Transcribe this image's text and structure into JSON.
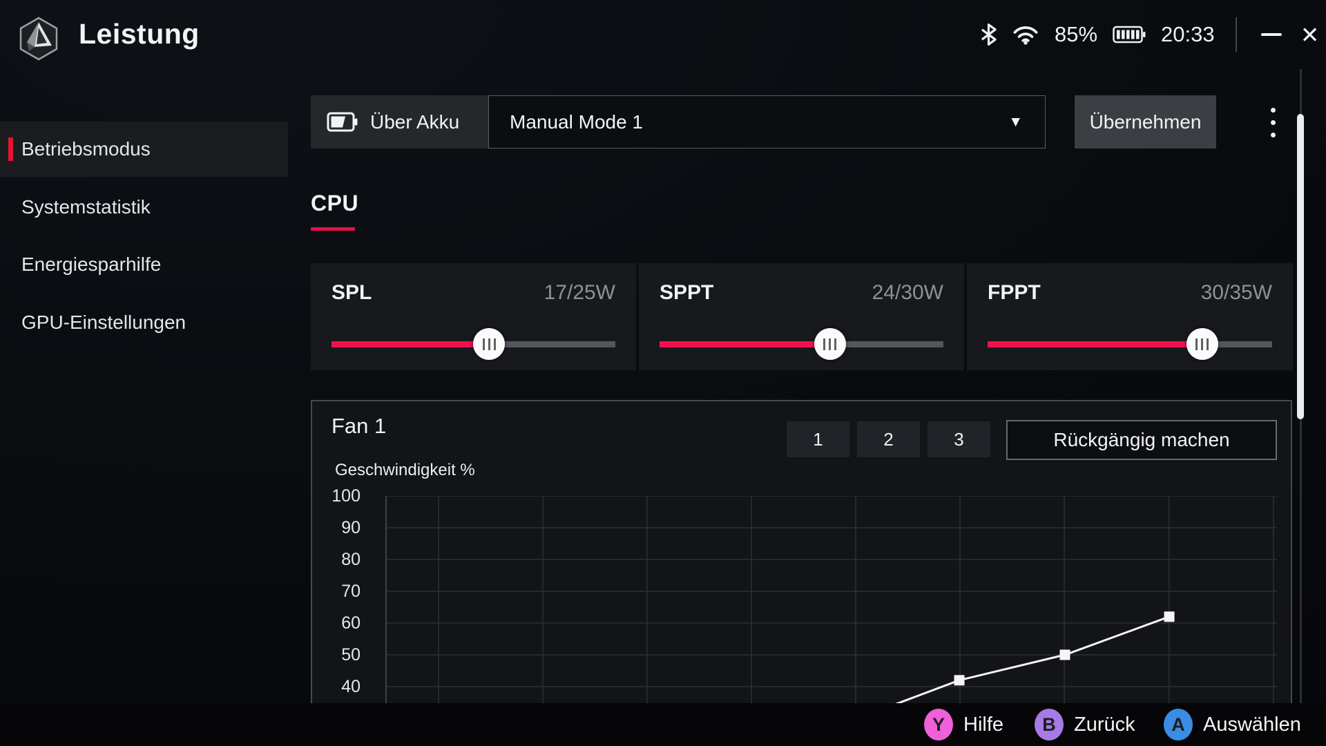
{
  "window": {
    "title": "Leistung",
    "battery_percent": "85%",
    "time": "20:33"
  },
  "icons": {
    "close_glyph": "✕",
    "dropdown_arrow_glyph": "▼"
  },
  "sidebar": {
    "items": [
      {
        "label": "Betriebsmodus",
        "selected": true
      },
      {
        "label": "Systemstatistik",
        "selected": false
      },
      {
        "label": "Energiesparhilfe",
        "selected": false
      },
      {
        "label": "GPU-Einstellungen",
        "selected": false
      }
    ]
  },
  "mode_bar": {
    "power_source_label": "Über Akku",
    "selected_mode": "Manual Mode 1",
    "apply_label": "Übernehmen"
  },
  "tabs": {
    "cpu_label": "CPU"
  },
  "sliders": [
    {
      "label": "SPL",
      "value": "17/25W",
      "fraction": 0.555
    },
    {
      "label": "SPPT",
      "value": "24/30W",
      "fraction": 0.6
    },
    {
      "label": "FPPT",
      "value": "30/35W",
      "fraction": 0.754
    }
  ],
  "fan": {
    "title": "Fan 1",
    "presets": [
      "1",
      "2",
      "3"
    ],
    "undo_label": "Rückgängig machen"
  },
  "chart_data": {
    "type": "line",
    "title": "Fan 1",
    "ylabel": "Geschwindigkeit %",
    "y_ticks": [
      100,
      90,
      80,
      70,
      60,
      50,
      40
    ],
    "ylim_visible": [
      34,
      100
    ],
    "grid": true,
    "grid_color": "#2d3034",
    "axis_color": "#3e4145",
    "line_color": "#f5f5f5",
    "v_gridlines_xf": [
      0.0596,
      0.1766,
      0.2936,
      0.4105,
      0.5275,
      0.6444,
      0.7614,
      0.8791,
      0.9961
    ],
    "points": [
      {
        "xf": 0.5678,
        "y": 34,
        "marker": false
      },
      {
        "xf": 0.6437,
        "y": 42,
        "marker": true
      },
      {
        "xf": 0.7622,
        "y": 50,
        "marker": true
      },
      {
        "xf": 0.8792,
        "y": 62,
        "marker": true
      }
    ]
  },
  "bottom_bar": {
    "hints": [
      {
        "button": "Y",
        "label": "Hilfe",
        "color": "#f060d8"
      },
      {
        "button": "B",
        "label": "Zurück",
        "color": "#a87ae6"
      },
      {
        "button": "A",
        "label": "Auswählen",
        "color": "#3a8de4"
      }
    ]
  },
  "colors": {
    "accent_red": "#e8142e",
    "slider_red": "#f2104d",
    "tab_underline": "#e5114b"
  }
}
